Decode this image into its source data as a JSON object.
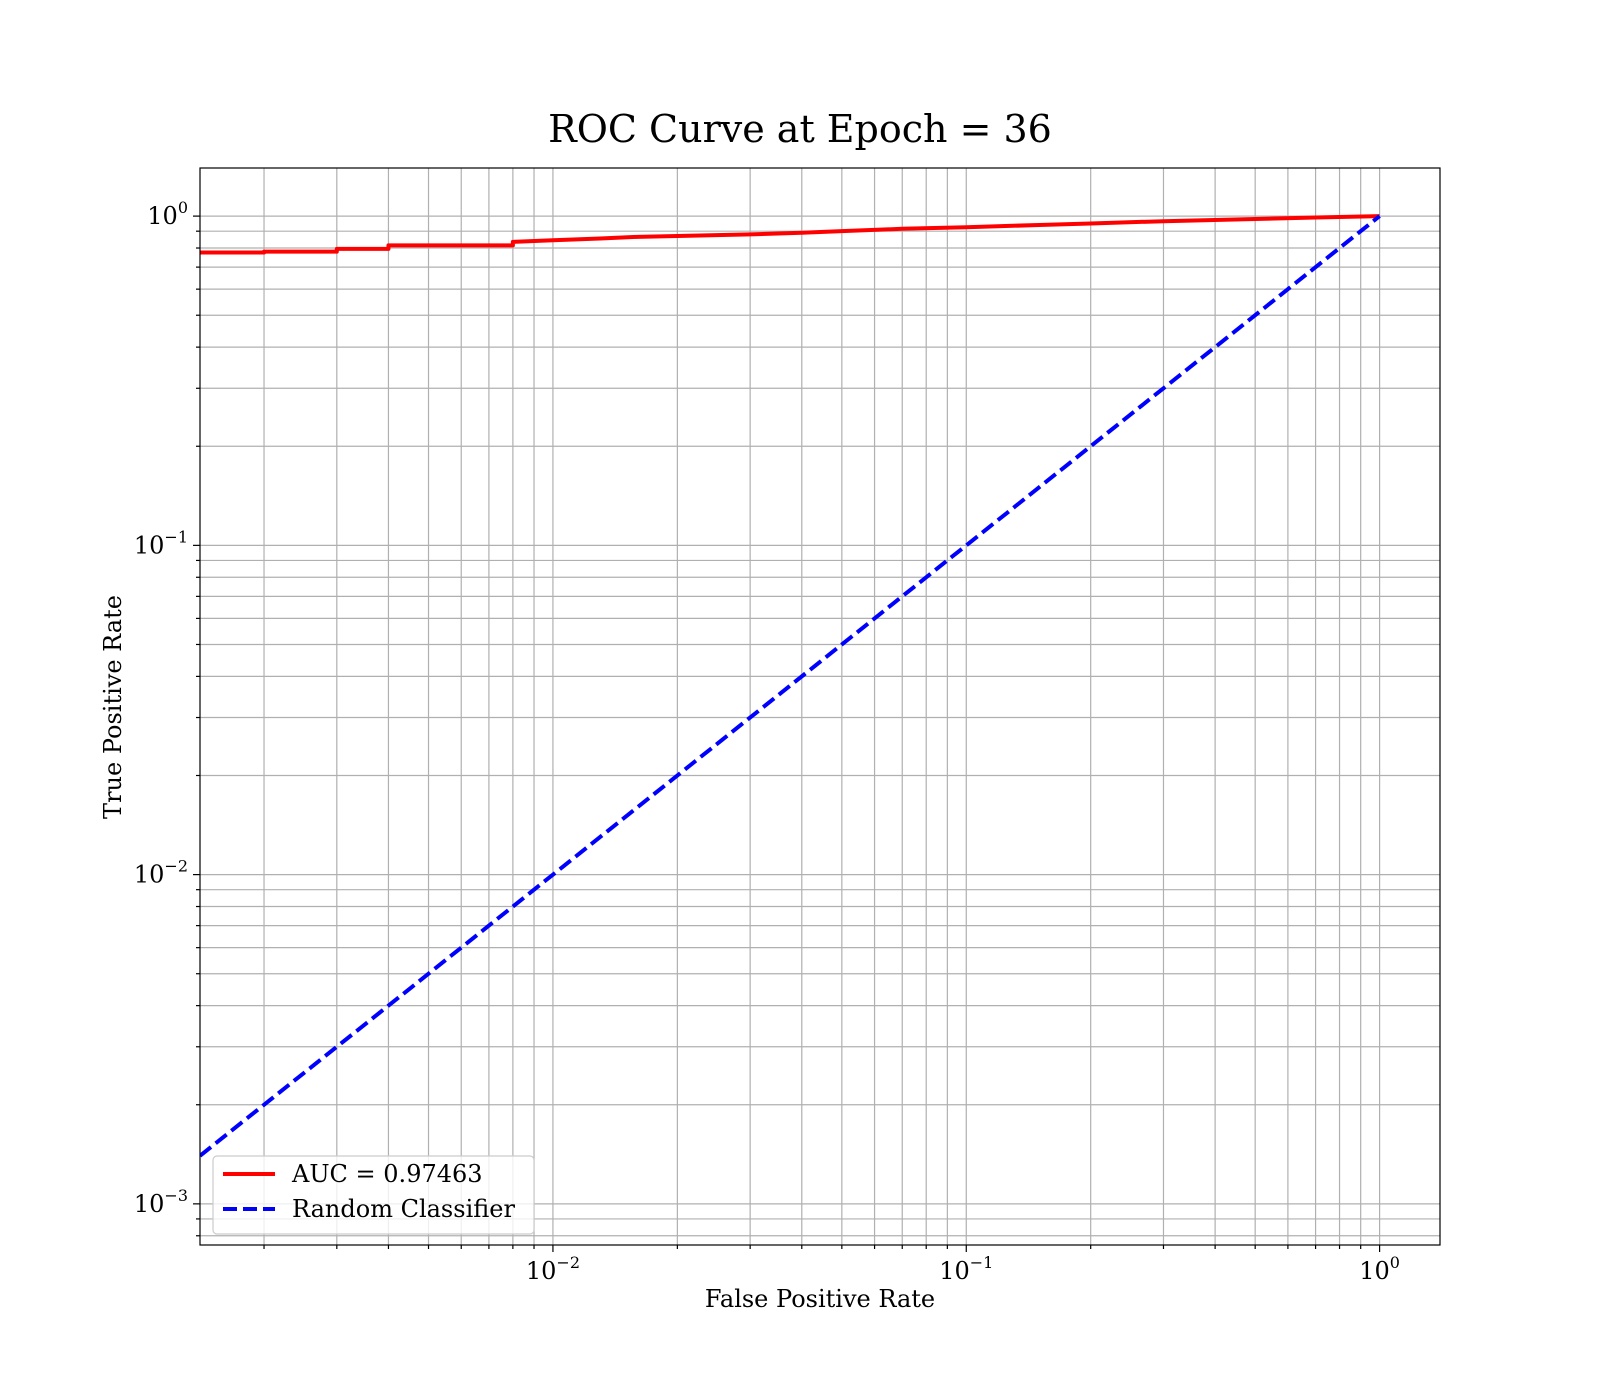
{
  "chart_data": {
    "type": "line",
    "title": "ROC Curve at Epoch = 36",
    "xlabel": "False Positive Rate",
    "ylabel": "True Positive Rate",
    "xscale": "log",
    "yscale": "log",
    "xlim": [
      0.0014,
      1.4
    ],
    "ylim": [
      0.00075,
      1.4
    ],
    "grid": true,
    "legend_position": "lower-left",
    "x_ticks": [
      {
        "value": 0.01,
        "base": "10",
        "exp": "−2"
      },
      {
        "value": 0.1,
        "base": "10",
        "exp": "−1"
      },
      {
        "value": 1,
        "base": "10",
        "exp": "0"
      }
    ],
    "y_ticks": [
      {
        "value": 0.001,
        "base": "10",
        "exp": "−3"
      },
      {
        "value": 0.01,
        "base": "10",
        "exp": "−2"
      },
      {
        "value": 0.1,
        "base": "10",
        "exp": "−1"
      },
      {
        "value": 1,
        "base": "10",
        "exp": "0"
      }
    ],
    "series": [
      {
        "name": "AUC = 0.97463",
        "color": "#ff0000",
        "style": "solid",
        "x": [
          0.0014,
          0.002,
          0.002,
          0.003,
          0.003,
          0.004,
          0.004,
          0.006,
          0.008,
          0.008,
          0.01,
          0.013,
          0.016,
          0.02,
          0.03,
          0.04,
          0.05,
          0.07,
          0.1,
          0.15,
          0.2,
          0.3,
          0.5,
          0.7,
          1.0
        ],
        "y": [
          0.775,
          0.775,
          0.78,
          0.78,
          0.795,
          0.795,
          0.815,
          0.815,
          0.815,
          0.835,
          0.845,
          0.855,
          0.865,
          0.87,
          0.88,
          0.89,
          0.9,
          0.915,
          0.925,
          0.94,
          0.95,
          0.965,
          0.98,
          0.99,
          1.0
        ]
      },
      {
        "name": "Random Classifier",
        "color": "#0000ff",
        "style": "dashed",
        "x": [
          0.0014,
          1.0
        ],
        "y": [
          0.0014,
          1.0
        ]
      }
    ]
  }
}
